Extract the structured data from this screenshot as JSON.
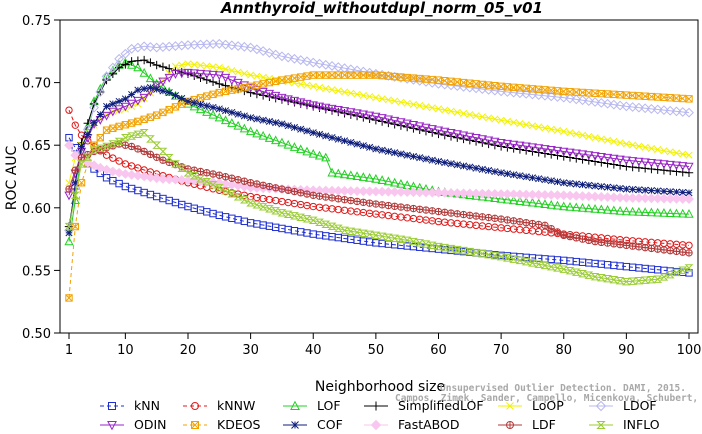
{
  "chart_data": {
    "type": "line",
    "title": "Annthyroid_withoutdupl_norm_05_v01",
    "xlabel": "Neighborhood size",
    "ylabel": "ROC AUC",
    "xlim": [
      1,
      100
    ],
    "ylim": [
      0.5,
      0.75
    ],
    "xticks": [
      1,
      10,
      20,
      30,
      40,
      50,
      60,
      70,
      80,
      90,
      100
    ],
    "yticks": [
      0.5,
      0.55,
      0.6,
      0.65,
      0.7,
      0.75
    ],
    "ytick_labels": [
      "0.50",
      "0.55",
      "0.60",
      "0.65",
      "0.70",
      "0.75"
    ],
    "grid": false,
    "legend_position": "bottom",
    "watermark": [
      "Unsupervised Outlier Detection. DAMI, 2015.",
      "Campos, Zimek, Sander, Campello, Micenkova, Schubert, Assent, Houle"
    ],
    "series": [
      {
        "name": "kNN",
        "color": "#1f2fcf",
        "marker": "square",
        "dash": "4,3",
        "points": [
          [
            1,
            0.656
          ],
          [
            2,
            0.648
          ],
          [
            3,
            0.64
          ],
          [
            5,
            0.631
          ],
          [
            7,
            0.624
          ],
          [
            10,
            0.617
          ],
          [
            15,
            0.609
          ],
          [
            20,
            0.601
          ],
          [
            25,
            0.594
          ],
          [
            30,
            0.588
          ],
          [
            40,
            0.579
          ],
          [
            50,
            0.572
          ],
          [
            60,
            0.567
          ],
          [
            70,
            0.562
          ],
          [
            80,
            0.558
          ],
          [
            90,
            0.553
          ],
          [
            100,
            0.548
          ]
        ]
      },
      {
        "name": "kNNW",
        "color": "#e01919",
        "marker": "circle",
        "dash": "4,3",
        "points": [
          [
            1,
            0.678
          ],
          [
            2,
            0.666
          ],
          [
            3,
            0.658
          ],
          [
            5,
            0.649
          ],
          [
            7,
            0.642
          ],
          [
            10,
            0.635
          ],
          [
            15,
            0.627
          ],
          [
            20,
            0.62
          ],
          [
            25,
            0.614
          ],
          [
            30,
            0.609
          ],
          [
            40,
            0.601
          ],
          [
            50,
            0.595
          ],
          [
            60,
            0.589
          ],
          [
            70,
            0.584
          ],
          [
            80,
            0.579
          ],
          [
            90,
            0.574
          ],
          [
            100,
            0.57
          ]
        ]
      },
      {
        "name": "LOF",
        "color": "#22d022",
        "marker": "triangle",
        "dash": "",
        "points": [
          [
            1,
            0.573
          ],
          [
            2,
            0.606
          ],
          [
            3,
            0.645
          ],
          [
            5,
            0.685
          ],
          [
            7,
            0.705
          ],
          [
            9,
            0.714
          ],
          [
            10,
            0.716
          ],
          [
            12,
            0.712
          ],
          [
            15,
            0.699
          ],
          [
            20,
            0.683
          ],
          [
            25,
            0.672
          ],
          [
            30,
            0.661
          ],
          [
            35,
            0.652
          ],
          [
            40,
            0.643
          ],
          [
            42,
            0.64
          ],
          [
            43,
            0.628
          ],
          [
            50,
            0.623
          ],
          [
            60,
            0.613
          ],
          [
            70,
            0.607
          ],
          [
            80,
            0.601
          ],
          [
            90,
            0.597
          ],
          [
            100,
            0.595
          ]
        ]
      },
      {
        "name": "SimplifiedLOF",
        "color": "#000000",
        "marker": "plus",
        "dash": "",
        "points": [
          [
            1,
            0.585
          ],
          [
            2,
            0.615
          ],
          [
            3,
            0.652
          ],
          [
            5,
            0.683
          ],
          [
            7,
            0.702
          ],
          [
            9,
            0.712
          ],
          [
            11,
            0.717
          ],
          [
            13,
            0.718
          ],
          [
            15,
            0.714
          ],
          [
            20,
            0.707
          ],
          [
            25,
            0.699
          ],
          [
            30,
            0.692
          ],
          [
            40,
            0.681
          ],
          [
            50,
            0.67
          ],
          [
            60,
            0.659
          ],
          [
            70,
            0.649
          ],
          [
            80,
            0.641
          ],
          [
            90,
            0.633
          ],
          [
            100,
            0.628
          ]
        ]
      },
      {
        "name": "LoOP",
        "color": "#f2f200",
        "marker": "x",
        "dash": "",
        "points": [
          [
            1,
            0.62
          ],
          [
            2,
            0.64
          ],
          [
            4,
            0.66
          ],
          [
            6,
            0.672
          ],
          [
            8,
            0.677
          ],
          [
            10,
            0.679
          ],
          [
            12,
            0.683
          ],
          [
            15,
            0.696
          ],
          [
            18,
            0.713
          ],
          [
            20,
            0.715
          ],
          [
            25,
            0.712
          ],
          [
            30,
            0.706
          ],
          [
            40,
            0.697
          ],
          [
            50,
            0.688
          ],
          [
            60,
            0.679
          ],
          [
            70,
            0.67
          ],
          [
            80,
            0.661
          ],
          [
            90,
            0.651
          ],
          [
            100,
            0.642
          ]
        ]
      },
      {
        "name": "LDOF",
        "color": "#b8b8f0",
        "marker": "diamond",
        "dash": "",
        "points": [
          [
            1,
            0.582
          ],
          [
            2,
            0.616
          ],
          [
            3,
            0.645
          ],
          [
            5,
            0.68
          ],
          [
            7,
            0.705
          ],
          [
            9,
            0.719
          ],
          [
            11,
            0.727
          ],
          [
            13,
            0.729
          ],
          [
            15,
            0.728
          ],
          [
            20,
            0.73
          ],
          [
            25,
            0.731
          ],
          [
            30,
            0.728
          ],
          [
            35,
            0.721
          ],
          [
            40,
            0.716
          ],
          [
            50,
            0.707
          ],
          [
            60,
            0.699
          ],
          [
            70,
            0.693
          ],
          [
            80,
            0.688
          ],
          [
            90,
            0.681
          ],
          [
            100,
            0.676
          ]
        ]
      },
      {
        "name": "ODIN",
        "color": "#9a24c8",
        "marker": "triangle-down",
        "dash": "",
        "points": [
          [
            1,
            0.61
          ],
          [
            3,
            0.645
          ],
          [
            5,
            0.667
          ],
          [
            8,
            0.677
          ],
          [
            10,
            0.681
          ],
          [
            13,
            0.688
          ],
          [
            15,
            0.698
          ],
          [
            18,
            0.707
          ],
          [
            20,
            0.708
          ],
          [
            25,
            0.706
          ],
          [
            30,
            0.696
          ],
          [
            35,
            0.688
          ],
          [
            40,
            0.682
          ],
          [
            50,
            0.673
          ],
          [
            60,
            0.662
          ],
          [
            70,
            0.652
          ],
          [
            80,
            0.645
          ],
          [
            90,
            0.638
          ],
          [
            100,
            0.633
          ]
        ]
      },
      {
        "name": "KDEOS",
        "color": "#f2a200",
        "marker": "square-x",
        "dash": "4,3",
        "points": [
          [
            1,
            0.528
          ],
          [
            2,
            0.585
          ],
          [
            3,
            0.62
          ],
          [
            5,
            0.65
          ],
          [
            7,
            0.662
          ],
          [
            9,
            0.665
          ],
          [
            12,
            0.669
          ],
          [
            15,
            0.674
          ],
          [
            20,
            0.685
          ],
          [
            25,
            0.692
          ],
          [
            30,
            0.697
          ],
          [
            35,
            0.702
          ],
          [
            40,
            0.706
          ],
          [
            45,
            0.706
          ],
          [
            50,
            0.706
          ],
          [
            60,
            0.702
          ],
          [
            70,
            0.697
          ],
          [
            80,
            0.693
          ],
          [
            90,
            0.69
          ],
          [
            100,
            0.687
          ]
        ]
      },
      {
        "name": "COF",
        "color": "#0e1e7a",
        "marker": "star",
        "dash": "",
        "points": [
          [
            1,
            0.58
          ],
          [
            2,
            0.62
          ],
          [
            3,
            0.649
          ],
          [
            5,
            0.668
          ],
          [
            7,
            0.681
          ],
          [
            10,
            0.687
          ],
          [
            12,
            0.694
          ],
          [
            14,
            0.696
          ],
          [
            17,
            0.692
          ],
          [
            20,
            0.685
          ],
          [
            25,
            0.679
          ],
          [
            30,
            0.672
          ],
          [
            35,
            0.667
          ],
          [
            40,
            0.66
          ],
          [
            50,
            0.647
          ],
          [
            60,
            0.637
          ],
          [
            70,
            0.628
          ],
          [
            80,
            0.62
          ],
          [
            90,
            0.615
          ],
          [
            100,
            0.612
          ]
        ]
      },
      {
        "name": "FastABOD",
        "color": "#f8c6ee",
        "marker": "diamond-fill",
        "dash": "",
        "points": [
          [
            1,
            0.65
          ],
          [
            2,
            0.642
          ],
          [
            4,
            0.636
          ],
          [
            6,
            0.632
          ],
          [
            8,
            0.629
          ],
          [
            10,
            0.627
          ],
          [
            13,
            0.625
          ],
          [
            16,
            0.623
          ],
          [
            20,
            0.622
          ],
          [
            25,
            0.62
          ],
          [
            30,
            0.616
          ],
          [
            40,
            0.614
          ],
          [
            50,
            0.613
          ],
          [
            60,
            0.612
          ],
          [
            70,
            0.611
          ],
          [
            80,
            0.61
          ],
          [
            90,
            0.608
          ],
          [
            100,
            0.607
          ]
        ]
      },
      {
        "name": "LDF",
        "color": "#b23a3a",
        "marker": "circle-plus",
        "dash": "",
        "points": [
          [
            1,
            0.615
          ],
          [
            2,
            0.63
          ],
          [
            3,
            0.64
          ],
          [
            5,
            0.645
          ],
          [
            7,
            0.648
          ],
          [
            9,
            0.651
          ],
          [
            11,
            0.649
          ],
          [
            13,
            0.645
          ],
          [
            16,
            0.638
          ],
          [
            20,
            0.631
          ],
          [
            25,
            0.626
          ],
          [
            30,
            0.62
          ],
          [
            35,
            0.615
          ],
          [
            40,
            0.61
          ],
          [
            50,
            0.603
          ],
          [
            60,
            0.597
          ],
          [
            70,
            0.591
          ],
          [
            77,
            0.586
          ],
          [
            80,
            0.578
          ],
          [
            85,
            0.573
          ],
          [
            90,
            0.57
          ],
          [
            100,
            0.564
          ]
        ]
      },
      {
        "name": "INFLO",
        "color": "#9acd32",
        "marker": "hourglass",
        "dash": "",
        "points": [
          [
            1,
            0.585
          ],
          [
            2,
            0.61
          ],
          [
            3,
            0.635
          ],
          [
            5,
            0.646
          ],
          [
            7,
            0.649
          ],
          [
            9,
            0.653
          ],
          [
            10,
            0.656
          ],
          [
            13,
            0.66
          ],
          [
            15,
            0.65
          ],
          [
            18,
            0.635
          ],
          [
            20,
            0.628
          ],
          [
            25,
            0.616
          ],
          [
            30,
            0.604
          ],
          [
            35,
            0.596
          ],
          [
            40,
            0.59
          ],
          [
            45,
            0.582
          ],
          [
            50,
            0.578
          ],
          [
            55,
            0.574
          ],
          [
            60,
            0.569
          ],
          [
            65,
            0.565
          ],
          [
            70,
            0.561
          ],
          [
            75,
            0.556
          ],
          [
            80,
            0.551
          ],
          [
            85,
            0.545
          ],
          [
            90,
            0.541
          ],
          [
            95,
            0.543
          ],
          [
            100,
            0.552
          ]
        ]
      }
    ],
    "legend_order": [
      [
        "kNN",
        "kNNW",
        "LOF",
        "SimplifiedLOF",
        "LoOP",
        "LDOF"
      ],
      [
        "ODIN",
        "KDEOS",
        "COF",
        "FastABOD",
        "LDF",
        "INFLO"
      ]
    ]
  }
}
